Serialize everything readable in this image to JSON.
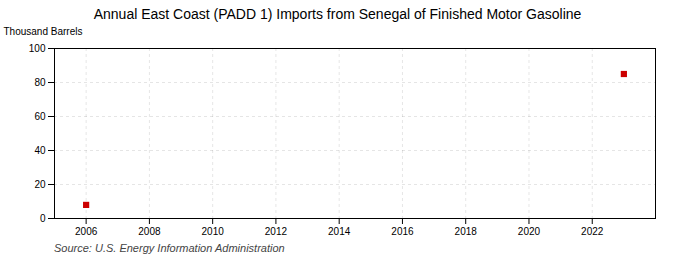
{
  "chart_data": {
    "type": "scatter",
    "title": "Annual East Coast (PADD 1) Imports from Senegal of Finished Motor Gasoline",
    "ylabel": "Thousand Barrels",
    "source": "Source: U.S. Energy Information Administration",
    "x": [
      2006,
      2023
    ],
    "values": [
      8,
      85
    ],
    "color": "#cc0000",
    "marker": "square",
    "xlim": [
      2005.0,
      2024.0
    ],
    "xticks": [
      2006,
      2008,
      2010,
      2012,
      2014,
      2016,
      2018,
      2020,
      2022
    ],
    "ylim": [
      0,
      100
    ],
    "yticks": [
      0,
      20,
      40,
      60,
      80,
      100
    ],
    "grid": true
  }
}
